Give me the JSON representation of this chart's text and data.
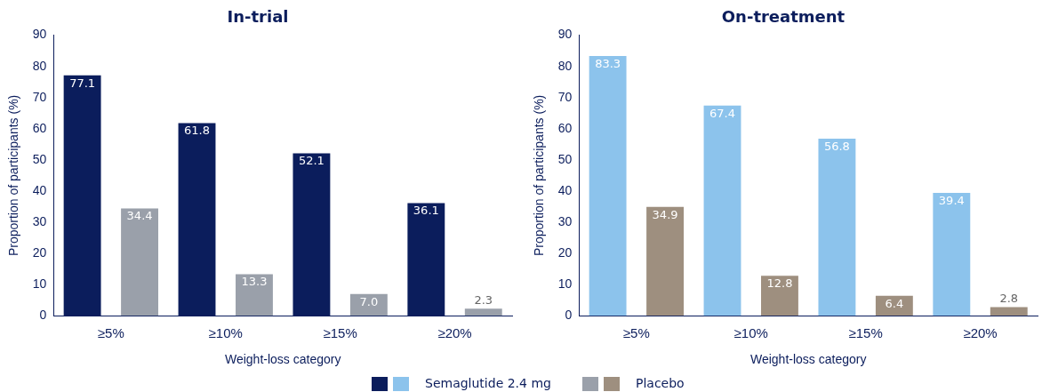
{
  "chart_data": [
    {
      "type": "bar",
      "title": "In-trial",
      "xlabel": "Weight-loss category",
      "ylabel": "Proportion of participants (%)",
      "categories": [
        "≥5%",
        "≥10%",
        "≥15%",
        "≥20%"
      ],
      "series": [
        {
          "name": "Semaglutide 2.4 mg",
          "color": "#0b1d5c",
          "values": [
            77.1,
            61.8,
            52.1,
            36.1
          ],
          "value_labels": [
            "77.1",
            "61.8",
            "52.1",
            "36.1"
          ]
        },
        {
          "name": "Placebo",
          "color": "#9aa0aa",
          "values": [
            34.4,
            13.3,
            7.0,
            2.3
          ],
          "value_labels": [
            "34.4",
            "13.3",
            "7.0",
            "2.3"
          ]
        }
      ],
      "ylim": [
        0,
        90
      ],
      "yticks": [
        0,
        10,
        20,
        30,
        40,
        50,
        60,
        70,
        80,
        90
      ],
      "grid": false,
      "legend": "bottom"
    },
    {
      "type": "bar",
      "title": "On-treatment",
      "xlabel": "Weight-loss category",
      "ylabel": "Proportion of participants (%)",
      "categories": [
        "≥5%",
        "≥10%",
        "≥15%",
        "≥20%"
      ],
      "series": [
        {
          "color": "#8cc3ec",
          "values": [
            83.3,
            67.4,
            56.8,
            39.4
          ],
          "value_labels": [
            "83.3",
            "67.4",
            "56.8",
            "39.4"
          ]
        },
        {
          "color": "#9e8f7f",
          "values": [
            34.9,
            12.8,
            6.4,
            2.8
          ],
          "value_labels": [
            "34.9",
            "12.8",
            "6.4",
            "2.8"
          ]
        }
      ],
      "ylim": [
        0,
        90
      ],
      "yticks": [
        0,
        10,
        20,
        30,
        40,
        50,
        60,
        70,
        80,
        90
      ],
      "grid": false
    }
  ]
}
